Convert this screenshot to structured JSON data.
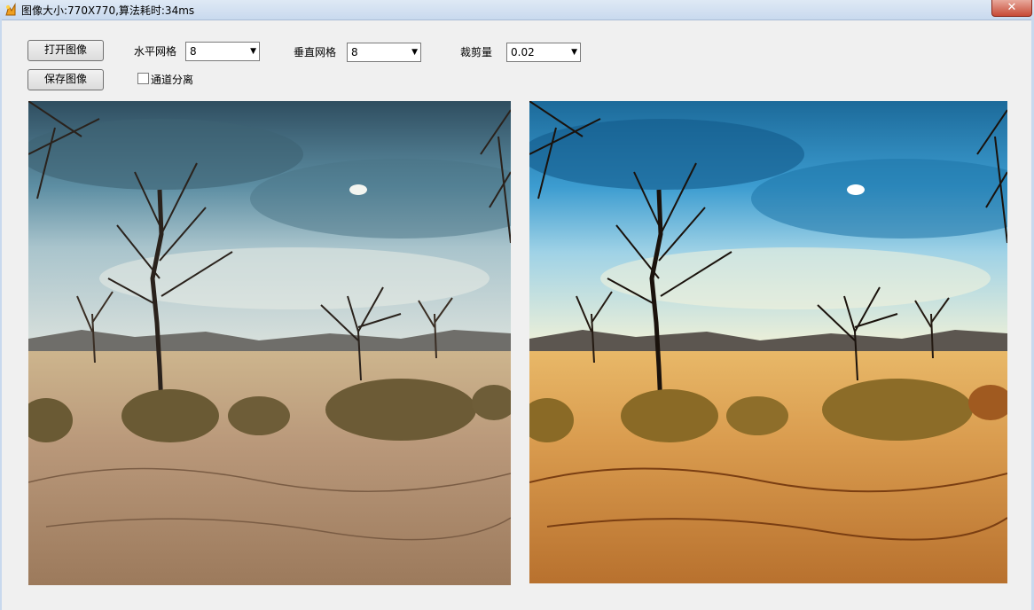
{
  "window": {
    "title": "图像大小:770X770,算法耗时:34ms",
    "close_label": "✕"
  },
  "toolbar": {
    "open_label": "打开图像",
    "save_label": "保存图像",
    "horizontal_grid_label": "水平网格",
    "horizontal_grid_value": "8",
    "vertical_grid_label": "垂直网格",
    "vertical_grid_value": "8",
    "clip_label": "裁剪量",
    "clip_value": "0.02",
    "channel_split_label": "通道分离",
    "channel_split_checked": false
  },
  "images": {
    "original": {
      "description": "landscape-with-bare-trees-original"
    },
    "processed": {
      "description": "landscape-with-bare-trees-clahe-enhanced"
    }
  },
  "colors": {
    "titlebar": "#c8d9ee",
    "window_bg": "#f0f0f0",
    "close_button": "#c74a36"
  }
}
